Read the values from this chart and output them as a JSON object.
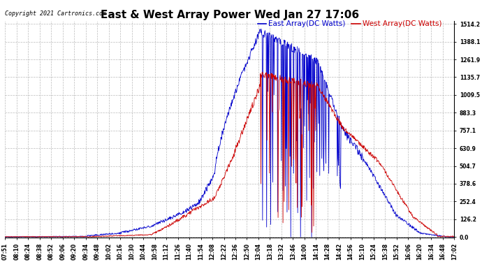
{
  "title": "East & West Array Power Wed Jan 27 17:06",
  "copyright": "Copyright 2021 Cartronics.com",
  "legend_east": "East Array(DC Watts)",
  "legend_west": "West Array(DC Watts)",
  "east_color": "#0000cc",
  "west_color": "#cc0000",
  "background_color": "#ffffff",
  "grid_color": "#aaaaaa",
  "yticks": [
    0.0,
    126.2,
    252.4,
    378.6,
    504.7,
    630.9,
    757.1,
    883.3,
    1009.5,
    1135.7,
    1261.9,
    1388.1,
    1514.2
  ],
  "ymax": 1514.2,
  "ymin": 0.0,
  "x_labels": [
    "07:51",
    "08:10",
    "08:24",
    "08:38",
    "08:52",
    "09:06",
    "09:20",
    "09:34",
    "09:48",
    "10:02",
    "10:16",
    "10:30",
    "10:44",
    "10:58",
    "11:12",
    "11:26",
    "11:40",
    "11:54",
    "12:08",
    "12:22",
    "12:36",
    "12:50",
    "13:04",
    "13:18",
    "13:32",
    "13:46",
    "14:00",
    "14:14",
    "14:28",
    "14:42",
    "14:56",
    "15:10",
    "15:24",
    "15:38",
    "15:52",
    "16:06",
    "16:20",
    "16:34",
    "16:48",
    "17:02"
  ],
  "title_fontsize": 11,
  "tick_fontsize": 5.5,
  "copyright_fontsize": 6,
  "legend_fontsize": 7.5
}
